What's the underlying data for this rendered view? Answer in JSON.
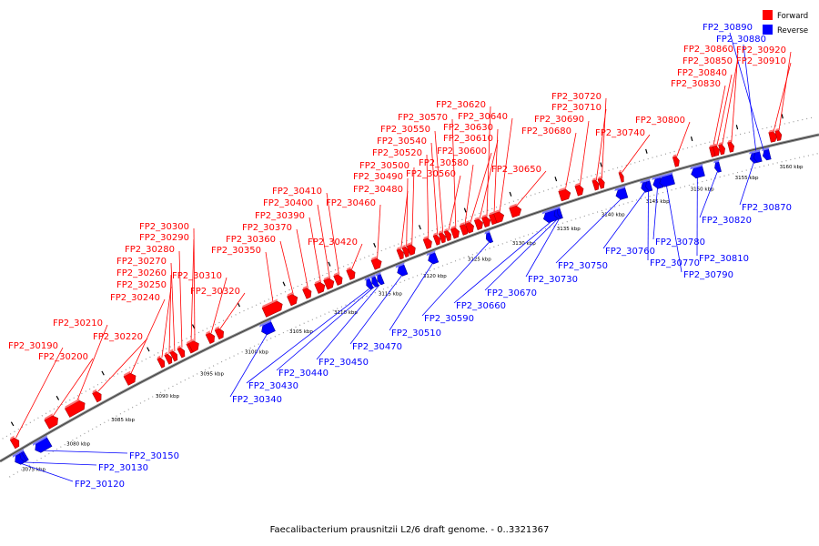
{
  "caption": "Faecalibacterium prausnitzii L2/6 draft genome. - 0..3321367",
  "legend": [
    {
      "label": "Forward",
      "color": "#ff0000"
    },
    {
      "label": "Reverse",
      "color": "#0000ff"
    }
  ],
  "colors": {
    "forward": "#ff0000",
    "reverse": "#0000ff",
    "backbone": "#888888"
  },
  "ticks": [
    "3075 kbp",
    "3080 kbp",
    "3085 kbp",
    "3090 kbp",
    "3095 kbp",
    "3100 kbp",
    "3105 kbp",
    "3110 kbp",
    "3115 kbp",
    "3120 kbp",
    "3125 kbp",
    "3130 kbp",
    "3135 kbp",
    "3140 kbp",
    "3145 kbp",
    "3150 kbp",
    "3155 kbp",
    "3160 kbp"
  ],
  "forward_genes": [
    "FP2_30190",
    "FP2_30200",
    "FP2_30210",
    "FP2_30220",
    "FP2_30240",
    "FP2_30250",
    "FP2_30260",
    "FP2_30270",
    "FP2_30280",
    "FP2_30290",
    "FP2_30300",
    "FP2_30310",
    "FP2_30320",
    "FP2_30350",
    "FP2_30360",
    "FP2_30370",
    "FP2_30390",
    "FP2_30400",
    "FP2_30410",
    "FP2_30420",
    "FP2_30460",
    "FP2_30480",
    "FP2_30490",
    "FP2_30500",
    "FP2_30520",
    "FP2_30540",
    "FP2_30550",
    "FP2_30560",
    "FP2_30570",
    "FP2_30580",
    "FP2_30600",
    "FP2_30610",
    "FP2_30620",
    "FP2_30630",
    "FP2_30640",
    "FP2_30650",
    "FP2_30680",
    "FP2_30690",
    "FP2_30710",
    "FP2_30720",
    "FP2_30740",
    "FP2_30800",
    "FP2_30830",
    "FP2_30840",
    "FP2_30850",
    "FP2_30860",
    "FP2_30910",
    "FP2_30920"
  ],
  "reverse_genes": [
    "FP2_30120",
    "FP2_30130",
    "FP2_30150",
    "FP2_30340",
    "FP2_30430",
    "FP2_30440",
    "FP2_30450",
    "FP2_30470",
    "FP2_30510",
    "FP2_30590",
    "FP2_30660",
    "FP2_30670",
    "FP2_30730",
    "FP2_30750",
    "FP2_30760",
    "FP2_30770",
    "FP2_30780",
    "FP2_30790",
    "FP2_30810",
    "FP2_30820",
    "FP2_30870",
    "FP2_30880",
    "FP2_30890"
  ]
}
